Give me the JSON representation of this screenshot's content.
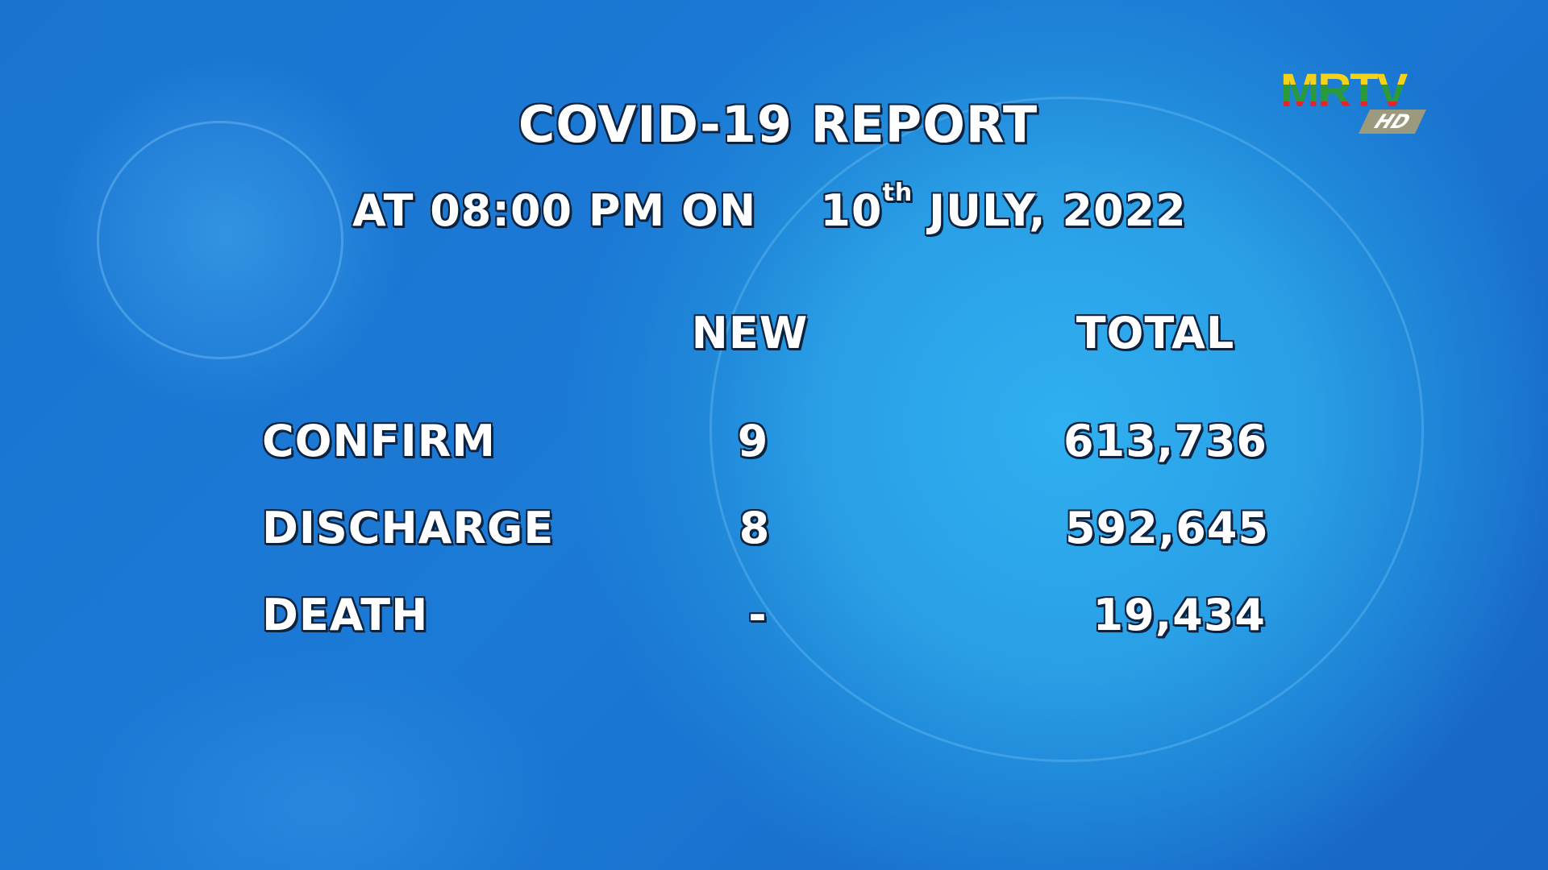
{
  "title": "COVID-19 REPORT",
  "date_line": {
    "prefix": "AT 08:00 PM ON",
    "day": "10",
    "day_suffix": "th",
    "rest": "JULY, 2022"
  },
  "columns": {
    "new": "NEW",
    "total": "TOTAL"
  },
  "rows": [
    {
      "label": "CONFIRM",
      "new": "9",
      "total": "613,736"
    },
    {
      "label": "DISCHARGE",
      "new": "8",
      "total": "592,645"
    },
    {
      "label": "DEATH",
      "new": "-",
      "total": "19,434"
    }
  ],
  "logo": {
    "text": "MRTV",
    "badge": "HD",
    "colors": [
      "#f5d21a",
      "#2a9a3a",
      "#e0262a"
    ]
  },
  "background_color": "#1b7ad6"
}
